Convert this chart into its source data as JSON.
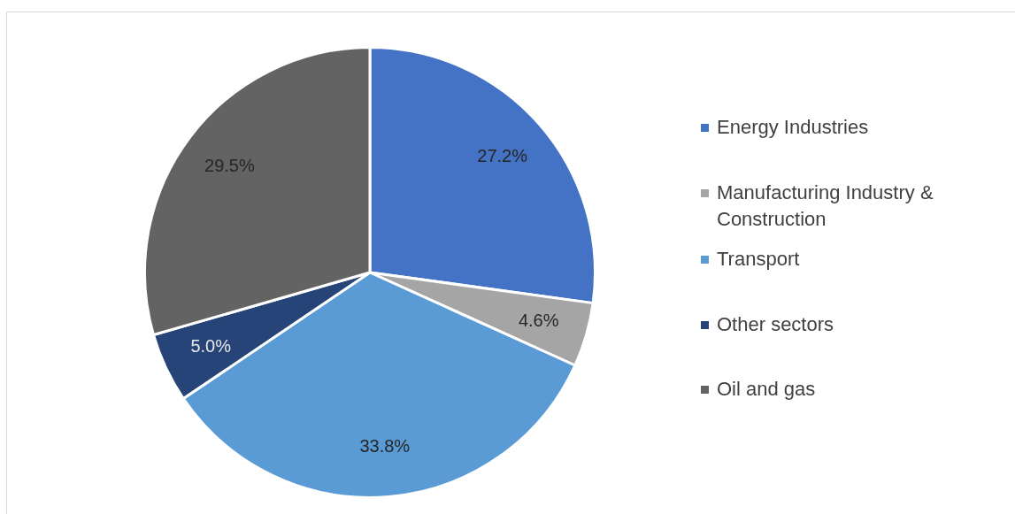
{
  "chart_data": {
    "type": "pie",
    "categories": [
      "Energy Industries",
      "Manufacturing Industry & Construction",
      "Transport",
      "Other sectors",
      "Oil and gas"
    ],
    "values": [
      27.2,
      4.6,
      33.8,
      5.0,
      29.5
    ],
    "colors": [
      "#4472c4",
      "#a5a5a5",
      "#5b9bd5",
      "#264478",
      "#636363"
    ],
    "value_labels": [
      "27.2%",
      "4.6%",
      "33.8%",
      "5.0%",
      "29.5%"
    ],
    "legend": "right"
  }
}
